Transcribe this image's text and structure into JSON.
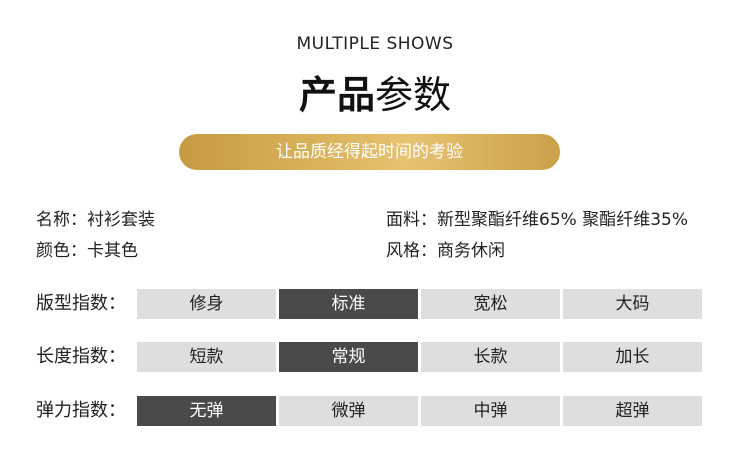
{
  "header": {
    "en_title": "MULTIPLE SHOWS",
    "cn_title_bold": "产品",
    "cn_title_light": "参数",
    "tagline": "让品质经得起时间的考验"
  },
  "specs": {
    "name": "名称：衬衫套装",
    "fabric": "面料：新型聚酯纤维65% 聚酯纤维35%",
    "color": "颜色：卡其色",
    "style": "风格：商务休闲"
  },
  "indices": [
    {
      "label": "版型指数：",
      "options": [
        "修身",
        "标准",
        "宽松",
        "大码"
      ],
      "selected": "标准"
    },
    {
      "label": "长度指数：",
      "options": [
        "短款",
        "常规",
        "长款",
        "加长"
      ],
      "selected": "常规"
    },
    {
      "label": "弹力指数：",
      "options": [
        "无弹",
        "微弹",
        "中弹",
        "超弹"
      ],
      "selected": "无弹"
    }
  ],
  "colors": {
    "accent_gold": "#d9b25c",
    "active_cell": "#4a4a4a",
    "inactive_cell": "#dedede"
  }
}
